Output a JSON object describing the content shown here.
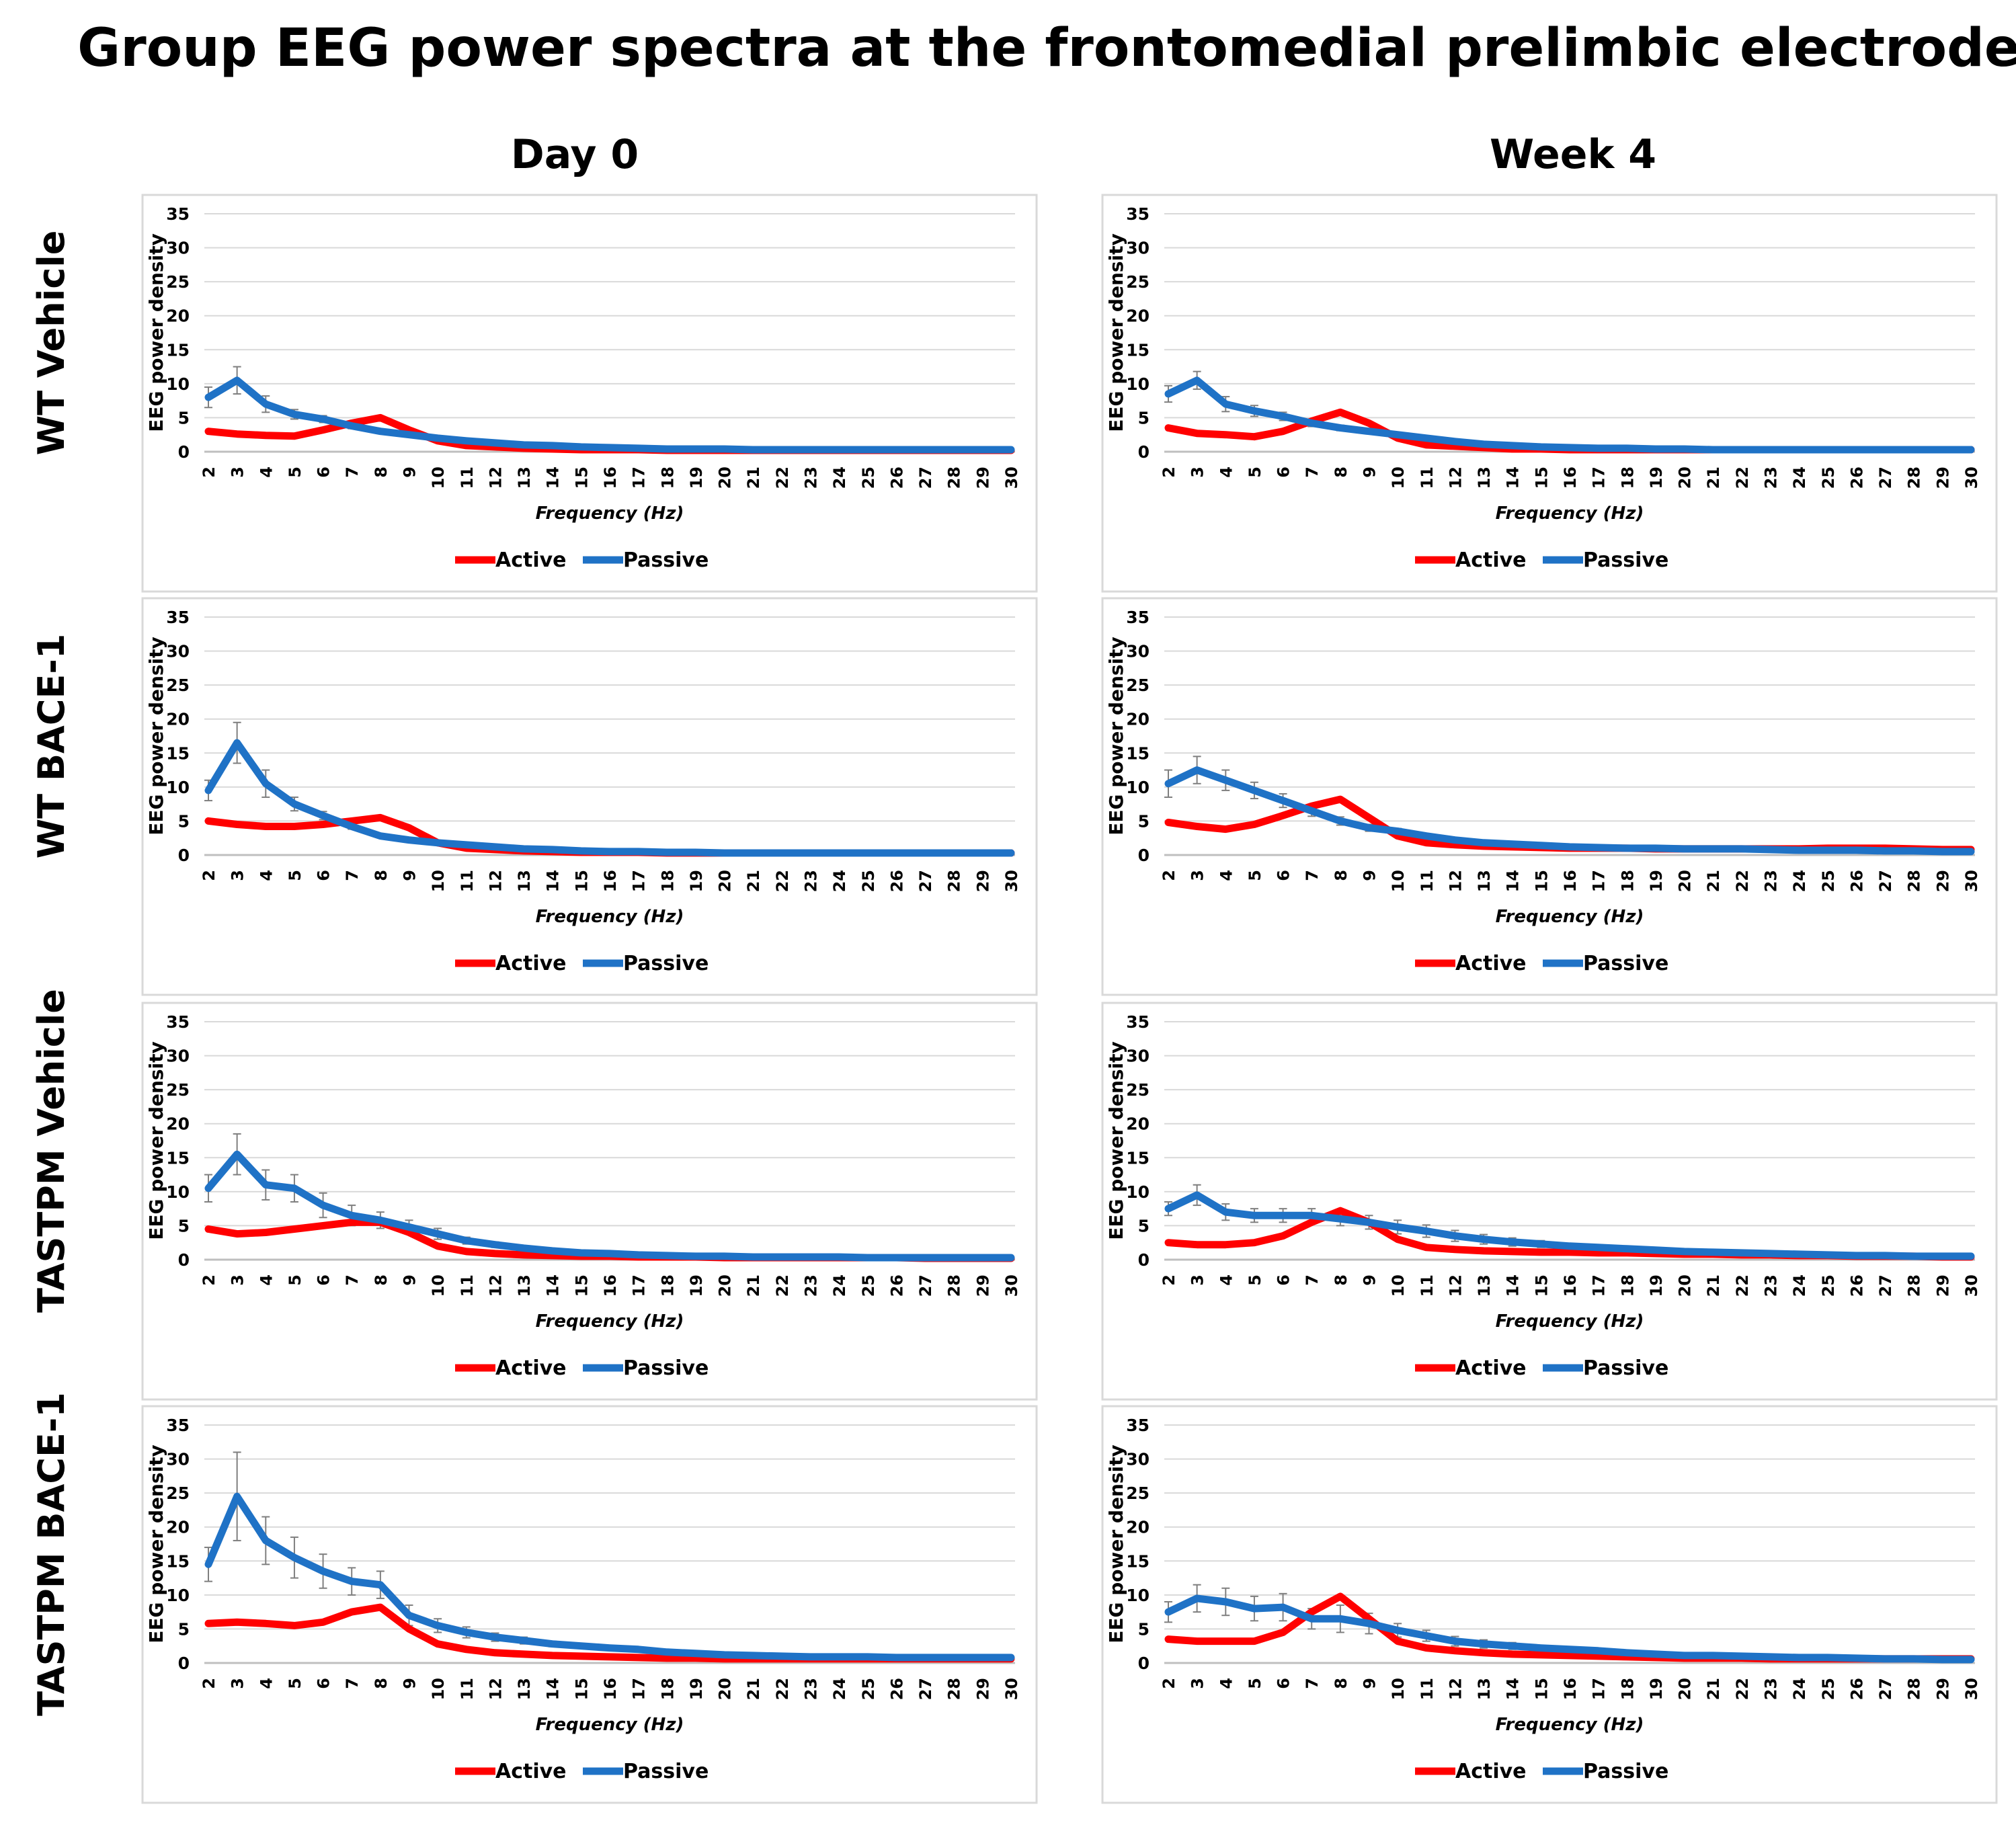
{
  "title": "Group EEG power spectra at the frontomedial prelimbic electrode",
  "columns": [
    "Day 0",
    "Week 4"
  ],
  "rows": [
    "WT Vehicle",
    "WT BACE-1",
    "TASTPM Vehicle",
    "TASTPM BACE-1"
  ],
  "colors": {
    "active": "#ff0000",
    "passive": "#1f72c6",
    "grid": "#d9d9d9",
    "axis": "#bfbfbf",
    "errorbar": "#7f7f7f",
    "panel_border": "#d9d9d9"
  },
  "chart_data": [
    {
      "type": "line",
      "row": "WT Vehicle",
      "column": "Day 0",
      "ylabel": "EEG power density",
      "xlabel": "Frequency (Hz)",
      "ylim": [
        0,
        35
      ],
      "yticks": [
        0,
        5,
        10,
        15,
        20,
        25,
        30,
        35
      ],
      "categories": [
        2,
        3,
        4,
        5,
        6,
        7,
        8,
        9,
        10,
        11,
        12,
        13,
        14,
        15,
        16,
        17,
        18,
        19,
        20,
        21,
        22,
        23,
        24,
        25,
        26,
        27,
        28,
        29,
        30
      ],
      "legend": [
        "Active",
        "Passive"
      ],
      "series": [
        {
          "name": "Active",
          "values": [
            3,
            2.6,
            2.4,
            2.3,
            3.2,
            4.2,
            5,
            3.2,
            1.6,
            0.9,
            0.7,
            0.5,
            0.4,
            0.3,
            0.3,
            0.3,
            0.2,
            0.2,
            0.2,
            0.2,
            0.2,
            0.2,
            0.2,
            0.2,
            0.2,
            0.2,
            0.2,
            0.2,
            0.2
          ]
        },
        {
          "name": "Passive",
          "values": [
            8,
            10.5,
            7,
            5.5,
            4.8,
            3.8,
            3,
            2.5,
            2,
            1.6,
            1.3,
            1,
            0.9,
            0.7,
            0.6,
            0.5,
            0.4,
            0.4,
            0.4,
            0.3,
            0.3,
            0.3,
            0.3,
            0.3,
            0.3,
            0.3,
            0.3,
            0.3,
            0.3
          ],
          "errors": [
            1.5,
            2,
            1.2,
            0.7,
            0.5,
            0.4,
            0.3,
            0.2,
            0.2,
            0.1,
            0.1,
            0.1,
            0.1,
            0.1,
            0.1,
            0.1,
            0.1,
            0.1,
            0.1,
            0.1,
            0.1,
            0.1,
            0.1,
            0.1,
            0.1,
            0.1,
            0.1,
            0.1,
            0.1
          ]
        }
      ]
    },
    {
      "type": "line",
      "row": "WT Vehicle",
      "column": "Week 4",
      "ylabel": "EEG power density",
      "xlabel": "Frequency (Hz)",
      "ylim": [
        0,
        35
      ],
      "yticks": [
        0,
        5,
        10,
        15,
        20,
        25,
        30,
        35
      ],
      "categories": [
        2,
        3,
        4,
        5,
        6,
        7,
        8,
        9,
        10,
        11,
        12,
        13,
        14,
        15,
        16,
        17,
        18,
        19,
        20,
        21,
        22,
        23,
        24,
        25,
        26,
        27,
        28,
        29,
        30
      ],
      "legend": [
        "Active",
        "Passive"
      ],
      "series": [
        {
          "name": "Active",
          "values": [
            3.5,
            2.7,
            2.5,
            2.2,
            3,
            4.5,
            5.8,
            4.2,
            2,
            1,
            0.8,
            0.6,
            0.4,
            0.4,
            0.3,
            0.3,
            0.3,
            0.3,
            0.3,
            0.3,
            0.3,
            0.3,
            0.3,
            0.3,
            0.3,
            0.3,
            0.3,
            0.3,
            0.3
          ]
        },
        {
          "name": "Passive",
          "values": [
            8.5,
            10.5,
            7,
            6,
            5.2,
            4.2,
            3.5,
            3,
            2.5,
            2,
            1.5,
            1.1,
            0.9,
            0.7,
            0.6,
            0.5,
            0.5,
            0.4,
            0.4,
            0.3,
            0.3,
            0.3,
            0.3,
            0.3,
            0.3,
            0.3,
            0.3,
            0.3,
            0.3
          ],
          "errors": [
            1.2,
            1.3,
            1.1,
            0.8,
            0.6,
            0.5,
            0.4,
            0.3,
            0.2,
            0.2,
            0.1,
            0.1,
            0.1,
            0.1,
            0.1,
            0.1,
            0.1,
            0.1,
            0.1,
            0.1,
            0.1,
            0.1,
            0.1,
            0.1,
            0.1,
            0.1,
            0.1,
            0.1,
            0.1
          ]
        }
      ]
    },
    {
      "type": "line",
      "row": "WT BACE-1",
      "column": "Day 0",
      "ylabel": "EEG power density",
      "xlabel": "Frequency (Hz)",
      "ylim": [
        0,
        35
      ],
      "yticks": [
        0,
        5,
        10,
        15,
        20,
        25,
        30,
        35
      ],
      "categories": [
        2,
        3,
        4,
        5,
        6,
        7,
        8,
        9,
        10,
        11,
        12,
        13,
        14,
        15,
        16,
        17,
        18,
        19,
        20,
        21,
        22,
        23,
        24,
        25,
        26,
        27,
        28,
        29,
        30
      ],
      "legend": [
        "Active",
        "Passive"
      ],
      "series": [
        {
          "name": "Active",
          "values": [
            5,
            4.5,
            4.2,
            4.2,
            4.5,
            5,
            5.5,
            4,
            1.8,
            1,
            0.8,
            0.6,
            0.5,
            0.4,
            0.4,
            0.4,
            0.3,
            0.3,
            0.3,
            0.3,
            0.3,
            0.3,
            0.3,
            0.3,
            0.3,
            0.3,
            0.3,
            0.3,
            0.3
          ]
        },
        {
          "name": "Passive",
          "values": [
            9.5,
            16.5,
            10.5,
            7.5,
            5.8,
            4.2,
            2.8,
            2.2,
            1.8,
            1.5,
            1.2,
            0.9,
            0.8,
            0.6,
            0.5,
            0.5,
            0.4,
            0.4,
            0.3,
            0.3,
            0.3,
            0.3,
            0.3,
            0.3,
            0.3,
            0.3,
            0.3,
            0.3,
            0.3
          ],
          "errors": [
            1.5,
            3,
            2,
            1,
            0.6,
            0.4,
            0.3,
            0.2,
            0.2,
            0.1,
            0.1,
            0.1,
            0.1,
            0.1,
            0.1,
            0.1,
            0.1,
            0.1,
            0.1,
            0.1,
            0.1,
            0.1,
            0.1,
            0.1,
            0.1,
            0.1,
            0.1,
            0.1,
            0.1
          ]
        }
      ]
    },
    {
      "type": "line",
      "row": "WT BACE-1",
      "column": "Week 4",
      "ylabel": "EEG power density",
      "xlabel": "Frequency (Hz)",
      "ylim": [
        0,
        35
      ],
      "yticks": [
        0,
        5,
        10,
        15,
        20,
        25,
        30,
        35
      ],
      "categories": [
        2,
        3,
        4,
        5,
        6,
        7,
        8,
        9,
        10,
        11,
        12,
        13,
        14,
        15,
        16,
        17,
        18,
        19,
        20,
        21,
        22,
        23,
        24,
        25,
        26,
        27,
        28,
        29,
        30
      ],
      "legend": [
        "Active",
        "Passive"
      ],
      "series": [
        {
          "name": "Active",
          "values": [
            4.8,
            4.2,
            3.8,
            4.5,
            5.8,
            7.2,
            8.2,
            5.5,
            2.8,
            1.8,
            1.5,
            1.3,
            1.2,
            1.1,
            1,
            1,
            1,
            0.9,
            0.9,
            0.9,
            0.9,
            0.9,
            0.9,
            1,
            1,
            1,
            0.9,
            0.8,
            0.8
          ]
        },
        {
          "name": "Passive",
          "values": [
            10.5,
            12.5,
            11,
            9.5,
            8,
            6.5,
            5,
            4,
            3.5,
            2.8,
            2.2,
            1.8,
            1.6,
            1.4,
            1.2,
            1.1,
            1,
            1,
            0.9,
            0.9,
            0.9,
            0.8,
            0.7,
            0.7,
            0.7,
            0.6,
            0.6,
            0.5,
            0.5
          ],
          "errors": [
            2,
            2,
            1.5,
            1.2,
            1,
            0.8,
            0.6,
            0.5,
            0.4,
            0.3,
            0.2,
            0.2,
            0.2,
            0.1,
            0.1,
            0.1,
            0.1,
            0.1,
            0.1,
            0.1,
            0.1,
            0.1,
            0.1,
            0.1,
            0.1,
            0.1,
            0.1,
            0.1,
            0.1
          ]
        }
      ]
    },
    {
      "type": "line",
      "row": "TASTPM Vehicle",
      "column": "Day 0",
      "ylabel": "EEG power density",
      "xlabel": "Frequency (Hz)",
      "ylim": [
        0,
        35
      ],
      "yticks": [
        0,
        5,
        10,
        15,
        20,
        25,
        30,
        35
      ],
      "categories": [
        2,
        3,
        4,
        5,
        6,
        7,
        8,
        9,
        10,
        11,
        12,
        13,
        14,
        15,
        16,
        17,
        18,
        19,
        20,
        21,
        22,
        23,
        24,
        25,
        26,
        27,
        28,
        29,
        30
      ],
      "legend": [
        "Active",
        "Passive"
      ],
      "series": [
        {
          "name": "Active",
          "values": [
            4.5,
            3.8,
            4,
            4.5,
            5,
            5.5,
            5.5,
            4,
            2,
            1.2,
            0.9,
            0.7,
            0.6,
            0.5,
            0.5,
            0.4,
            0.4,
            0.4,
            0.3,
            0.3,
            0.3,
            0.3,
            0.3,
            0.3,
            0.3,
            0.2,
            0.2,
            0.2,
            0.2
          ]
        },
        {
          "name": "Passive",
          "values": [
            10.5,
            15.5,
            11,
            10.5,
            8,
            6.5,
            5.8,
            4.8,
            3.8,
            2.8,
            2.2,
            1.7,
            1.3,
            1,
            0.9,
            0.7,
            0.6,
            0.5,
            0.5,
            0.4,
            0.4,
            0.4,
            0.4,
            0.3,
            0.3,
            0.3,
            0.3,
            0.3,
            0.3
          ],
          "errors": [
            2,
            3,
            2.2,
            2,
            1.8,
            1.5,
            1.2,
            1,
            0.8,
            0.5,
            0.4,
            0.3,
            0.2,
            0.2,
            0.1,
            0.1,
            0.1,
            0.1,
            0.1,
            0.1,
            0.1,
            0.1,
            0.1,
            0.1,
            0.1,
            0.1,
            0.1,
            0.1,
            0.1
          ]
        }
      ]
    },
    {
      "type": "line",
      "row": "TASTPM Vehicle",
      "column": "Week 4",
      "ylabel": "EEG power density",
      "xlabel": "Frequency (Hz)",
      "ylim": [
        0,
        35
      ],
      "yticks": [
        0,
        5,
        10,
        15,
        20,
        25,
        30,
        35
      ],
      "categories": [
        2,
        3,
        4,
        5,
        6,
        7,
        8,
        9,
        10,
        11,
        12,
        13,
        14,
        15,
        16,
        17,
        18,
        19,
        20,
        21,
        22,
        23,
        24,
        25,
        26,
        27,
        28,
        29,
        30
      ],
      "legend": [
        "Active",
        "Passive"
      ],
      "series": [
        {
          "name": "Active",
          "values": [
            2.5,
            2.2,
            2.2,
            2.5,
            3.5,
            5.5,
            7.2,
            5.5,
            3,
            1.8,
            1.5,
            1.3,
            1.2,
            1.1,
            1.1,
            1,
            1,
            0.9,
            0.8,
            0.8,
            0.7,
            0.7,
            0.6,
            0.6,
            0.5,
            0.5,
            0.5,
            0.4,
            0.4
          ]
        },
        {
          "name": "Passive",
          "values": [
            7.5,
            9.5,
            7,
            6.5,
            6.5,
            6.5,
            6,
            5.5,
            4.8,
            4.2,
            3.5,
            3,
            2.6,
            2.3,
            2,
            1.8,
            1.6,
            1.4,
            1.2,
            1.1,
            1,
            0.9,
            0.8,
            0.7,
            0.6,
            0.6,
            0.5,
            0.5,
            0.5
          ],
          "errors": [
            1,
            1.5,
            1.2,
            1,
            1,
            1,
            1,
            1,
            1,
            0.9,
            0.8,
            0.7,
            0.6,
            0.5,
            0.4,
            0.4,
            0.3,
            0.3,
            0.3,
            0.2,
            0.2,
            0.2,
            0.2,
            0.1,
            0.1,
            0.1,
            0.1,
            0.1,
            0.1
          ]
        }
      ]
    },
    {
      "type": "line",
      "row": "TASTPM BACE-1",
      "column": "Day 0",
      "ylabel": "EEG power density",
      "xlabel": "Frequency (Hz)",
      "ylim": [
        0,
        35
      ],
      "yticks": [
        0,
        5,
        10,
        15,
        20,
        25,
        30,
        35
      ],
      "categories": [
        2,
        3,
        4,
        5,
        6,
        7,
        8,
        9,
        10,
        11,
        12,
        13,
        14,
        15,
        16,
        17,
        18,
        19,
        20,
        21,
        22,
        23,
        24,
        25,
        26,
        27,
        28,
        29,
        30
      ],
      "legend": [
        "Active",
        "Passive"
      ],
      "series": [
        {
          "name": "Active",
          "values": [
            5.8,
            6,
            5.8,
            5.5,
            6,
            7.5,
            8.2,
            5,
            2.8,
            2,
            1.5,
            1.3,
            1.1,
            1,
            0.9,
            0.8,
            0.7,
            0.7,
            0.6,
            0.6,
            0.6,
            0.6,
            0.6,
            0.6,
            0.6,
            0.6,
            0.6,
            0.6,
            0.6
          ]
        },
        {
          "name": "Passive",
          "values": [
            14.5,
            24.5,
            18,
            15.5,
            13.5,
            12,
            11.5,
            7,
            5.5,
            4.5,
            3.8,
            3.3,
            2.8,
            2.5,
            2.2,
            2,
            1.6,
            1.4,
            1.2,
            1.1,
            1,
            0.9,
            0.9,
            0.9,
            0.8,
            0.8,
            0.8,
            0.8,
            0.8
          ],
          "errors": [
            2.5,
            6.5,
            3.5,
            3,
            2.5,
            2,
            2,
            1.5,
            1,
            0.8,
            0.6,
            0.5,
            0.4,
            0.3,
            0.3,
            0.2,
            0.2,
            0.2,
            0.1,
            0.1,
            0.1,
            0.1,
            0.1,
            0.1,
            0.1,
            0.1,
            0.1,
            0.1,
            0.1
          ]
        }
      ]
    },
    {
      "type": "line",
      "row": "TASTPM BACE-1",
      "column": "Week 4",
      "ylabel": "EEG power density",
      "xlabel": "Frequency (Hz)",
      "ylim": [
        0,
        35
      ],
      "yticks": [
        0,
        5,
        10,
        15,
        20,
        25,
        30,
        35
      ],
      "categories": [
        2,
        3,
        4,
        5,
        6,
        7,
        8,
        9,
        10,
        11,
        12,
        13,
        14,
        15,
        16,
        17,
        18,
        19,
        20,
        21,
        22,
        23,
        24,
        25,
        26,
        27,
        28,
        29,
        30
      ],
      "legend": [
        "Active",
        "Passive"
      ],
      "series": [
        {
          "name": "Active",
          "values": [
            3.5,
            3.2,
            3.2,
            3.2,
            4.5,
            7.5,
            9.8,
            6.5,
            3.2,
            2.2,
            1.8,
            1.5,
            1.3,
            1.2,
            1.1,
            1,
            0.9,
            0.8,
            0.7,
            0.7,
            0.7,
            0.6,
            0.6,
            0.6,
            0.6,
            0.6,
            0.6,
            0.6,
            0.6
          ]
        },
        {
          "name": "Passive",
          "values": [
            7.5,
            9.5,
            9,
            8,
            8.2,
            6.5,
            6.5,
            5.8,
            4.8,
            4,
            3.2,
            2.8,
            2.5,
            2.2,
            2,
            1.8,
            1.5,
            1.3,
            1.1,
            1.1,
            1,
            0.9,
            0.8,
            0.8,
            0.7,
            0.6,
            0.6,
            0.5,
            0.5
          ],
          "errors": [
            1.5,
            2,
            2,
            1.8,
            2,
            1.5,
            2,
            1.5,
            1,
            0.8,
            0.7,
            0.6,
            0.5,
            0.4,
            0.4,
            0.3,
            0.3,
            0.2,
            0.2,
            0.2,
            0.2,
            0.1,
            0.1,
            0.1,
            0.1,
            0.1,
            0.1,
            0.1,
            0.1
          ]
        }
      ]
    }
  ]
}
